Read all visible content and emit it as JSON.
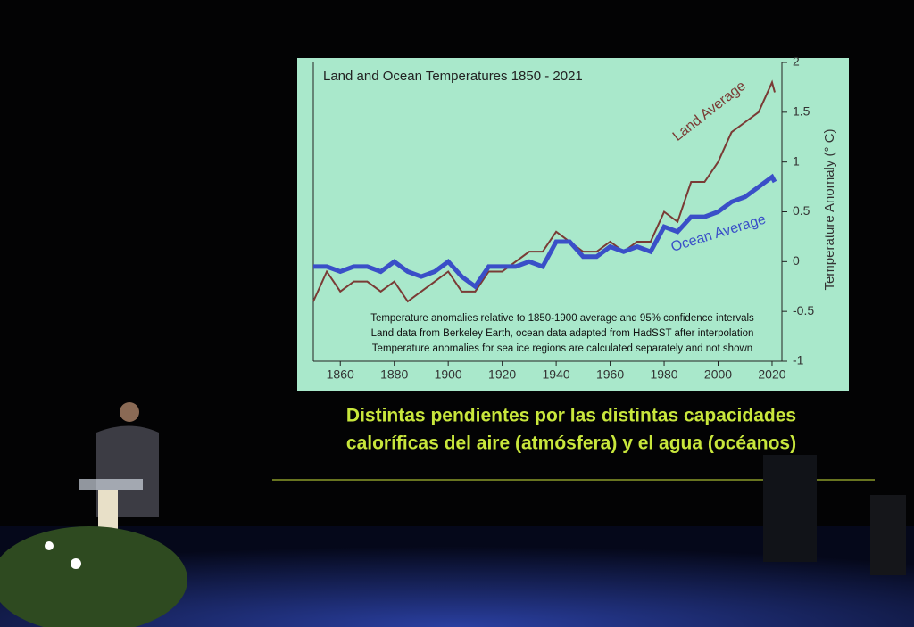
{
  "chart_data": {
    "type": "line",
    "title": "Land and Ocean Temperatures 1850 - 2021",
    "y_label": "Temperature Anomaly (° C)",
    "notes": [
      "Temperature anomalies relative to 1850-1900 average and 95% confidence intervals",
      "Land data from Berkeley Earth, ocean data adapted from HadSST after interpolation",
      "Temperature anomalies for sea ice regions are calculated separately and not shown"
    ],
    "x": [
      1850,
      1855,
      1860,
      1865,
      1870,
      1875,
      1880,
      1885,
      1890,
      1895,
      1900,
      1905,
      1910,
      1915,
      1920,
      1925,
      1930,
      1935,
      1940,
      1945,
      1950,
      1955,
      1960,
      1965,
      1970,
      1975,
      1980,
      1985,
      1990,
      1995,
      2000,
      2005,
      2010,
      2015,
      2020,
      2021
    ],
    "series": [
      {
        "name": "Land Average",
        "color": "#7a3b35",
        "values": [
          -0.4,
          -0.1,
          -0.3,
          -0.2,
          -0.2,
          -0.3,
          -0.2,
          -0.4,
          -0.3,
          -0.2,
          -0.1,
          -0.3,
          -0.3,
          -0.1,
          -0.1,
          0.0,
          0.1,
          0.1,
          0.3,
          0.2,
          0.1,
          0.1,
          0.2,
          0.1,
          0.2,
          0.2,
          0.5,
          0.4,
          0.8,
          0.8,
          1.0,
          1.3,
          1.4,
          1.5,
          1.8,
          1.7
        ]
      },
      {
        "name": "Ocean Average",
        "color": "#3a4fc8",
        "values": [
          -0.05,
          -0.05,
          -0.1,
          -0.05,
          -0.05,
          -0.1,
          0.0,
          -0.1,
          -0.15,
          -0.1,
          0.0,
          -0.15,
          -0.25,
          -0.05,
          -0.05,
          -0.05,
          0.0,
          -0.05,
          0.2,
          0.2,
          0.05,
          0.05,
          0.15,
          0.1,
          0.15,
          0.1,
          0.35,
          0.3,
          0.45,
          0.45,
          0.5,
          0.6,
          0.65,
          0.75,
          0.85,
          0.8
        ]
      }
    ],
    "xlim": [
      1850,
      2021
    ],
    "xticks": [
      1860,
      1880,
      1900,
      1920,
      1940,
      1960,
      1980,
      2000,
      2020
    ],
    "ylim": [
      -1,
      2
    ],
    "yticks": [
      -1,
      -0.5,
      0,
      0.5,
      1,
      1.5,
      2
    ]
  },
  "slide": {
    "caption": [
      "Distintas pendientes por las distintas capacidades",
      "caloríficas del aire (atmósfera) y el agua (océanos)"
    ]
  }
}
